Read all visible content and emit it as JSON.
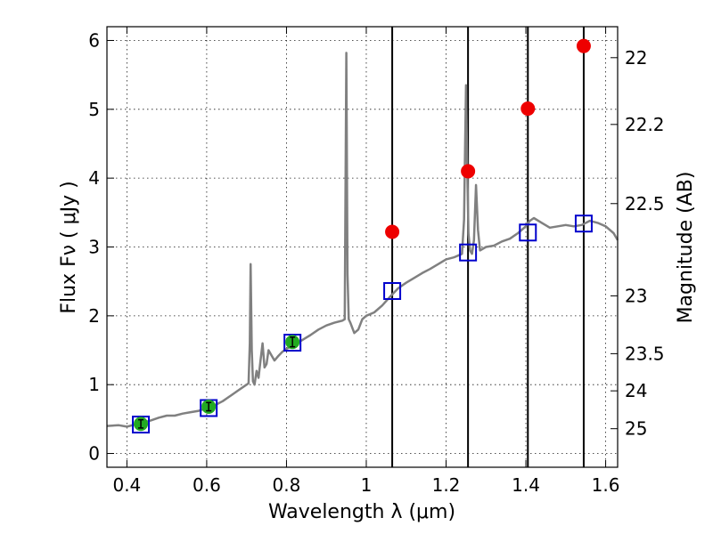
{
  "chart_data": {
    "type": "scatter",
    "title": "",
    "xlabel": "Wavelength  λ (μm)",
    "ylabel": "Flux  Fν  ( μJy )",
    "y2label": "Magnitude (AB)",
    "xlim": [
      0.35,
      1.63
    ],
    "ylim": [
      -0.2,
      6.2
    ],
    "xticks": [
      0.4,
      0.6,
      0.8,
      1.0,
      1.2,
      1.4,
      1.6
    ],
    "xtick_labels": [
      "0.4",
      "0.6",
      "0.8",
      "1",
      "1.2",
      "1.4",
      "1.6"
    ],
    "yticks": [
      0,
      1,
      2,
      3,
      4,
      5,
      6
    ],
    "ytick_labels": [
      "0",
      "1",
      "2",
      "3",
      "4",
      "5",
      "6"
    ],
    "grid": true,
    "y2ticks": [
      {
        "label": "22",
        "flux": 5.75
      },
      {
        "label": "22.2",
        "flux": 4.78
      },
      {
        "label": "22.5",
        "flux": 3.63
      },
      {
        "label": "23",
        "flux": 2.29
      },
      {
        "label": "23.5",
        "flux": 1.45
      },
      {
        "label": "24",
        "flux": 0.91
      },
      {
        "label": "25",
        "flux": 0.36
      }
    ],
    "vertical_lines": [
      1.065,
      1.255,
      1.405,
      1.545
    ],
    "series": [
      {
        "kind": "spectrum",
        "color": "#808080",
        "points": [
          [
            0.35,
            0.4
          ],
          [
            0.38,
            0.41
          ],
          [
            0.4,
            0.39
          ],
          [
            0.42,
            0.42
          ],
          [
            0.44,
            0.45
          ],
          [
            0.46,
            0.48
          ],
          [
            0.48,
            0.52
          ],
          [
            0.5,
            0.55
          ],
          [
            0.52,
            0.55
          ],
          [
            0.54,
            0.58
          ],
          [
            0.56,
            0.6
          ],
          [
            0.58,
            0.62
          ],
          [
            0.6,
            0.66
          ],
          [
            0.62,
            0.7
          ],
          [
            0.64,
            0.76
          ],
          [
            0.66,
            0.84
          ],
          [
            0.68,
            0.92
          ],
          [
            0.7,
            1.0
          ],
          [
            0.705,
            1.02
          ],
          [
            0.708,
            1.6
          ],
          [
            0.71,
            2.75
          ],
          [
            0.713,
            1.5
          ],
          [
            0.716,
            1.05
          ],
          [
            0.72,
            1.0
          ],
          [
            0.725,
            1.2
          ],
          [
            0.73,
            1.1
          ],
          [
            0.735,
            1.35
          ],
          [
            0.74,
            1.6
          ],
          [
            0.745,
            1.25
          ],
          [
            0.75,
            1.3
          ],
          [
            0.755,
            1.5
          ],
          [
            0.76,
            1.45
          ],
          [
            0.77,
            1.35
          ],
          [
            0.78,
            1.42
          ],
          [
            0.79,
            1.48
          ],
          [
            0.8,
            1.52
          ],
          [
            0.82,
            1.58
          ],
          [
            0.84,
            1.65
          ],
          [
            0.86,
            1.72
          ],
          [
            0.88,
            1.8
          ],
          [
            0.9,
            1.86
          ],
          [
            0.92,
            1.9
          ],
          [
            0.94,
            1.93
          ],
          [
            0.946,
            1.95
          ],
          [
            0.95,
            5.82
          ],
          [
            0.953,
            2.6
          ],
          [
            0.956,
            1.95
          ],
          [
            0.96,
            1.9
          ],
          [
            0.97,
            1.75
          ],
          [
            0.98,
            1.8
          ],
          [
            0.99,
            1.95
          ],
          [
            1.0,
            2.0
          ],
          [
            1.02,
            2.05
          ],
          [
            1.04,
            2.15
          ],
          [
            1.06,
            2.28
          ],
          [
            1.08,
            2.4
          ],
          [
            1.1,
            2.48
          ],
          [
            1.12,
            2.55
          ],
          [
            1.14,
            2.62
          ],
          [
            1.16,
            2.68
          ],
          [
            1.18,
            2.75
          ],
          [
            1.2,
            2.82
          ],
          [
            1.22,
            2.85
          ],
          [
            1.24,
            2.9
          ],
          [
            1.245,
            3.4
          ],
          [
            1.248,
            4.6
          ],
          [
            1.25,
            5.35
          ],
          [
            1.253,
            4.2
          ],
          [
            1.256,
            3.2
          ],
          [
            1.26,
            2.95
          ],
          [
            1.265,
            2.9
          ],
          [
            1.27,
            3.1
          ],
          [
            1.275,
            3.9
          ],
          [
            1.28,
            3.25
          ],
          [
            1.285,
            2.95
          ],
          [
            1.3,
            3.0
          ],
          [
            1.32,
            3.02
          ],
          [
            1.34,
            3.08
          ],
          [
            1.36,
            3.12
          ],
          [
            1.38,
            3.2
          ],
          [
            1.4,
            3.3
          ],
          [
            1.41,
            3.38
          ],
          [
            1.42,
            3.42
          ],
          [
            1.44,
            3.35
          ],
          [
            1.46,
            3.28
          ],
          [
            1.48,
            3.3
          ],
          [
            1.5,
            3.32
          ],
          [
            1.52,
            3.3
          ],
          [
            1.54,
            3.32
          ],
          [
            1.56,
            3.38
          ],
          [
            1.58,
            3.35
          ],
          [
            1.6,
            3.3
          ],
          [
            1.62,
            3.2
          ],
          [
            1.63,
            3.1
          ]
        ]
      },
      {
        "kind": "model_boxes",
        "color": "#0000cc",
        "points": [
          [
            0.435,
            0.42
          ],
          [
            0.605,
            0.66
          ],
          [
            0.815,
            1.61
          ],
          [
            1.065,
            2.36
          ],
          [
            1.255,
            2.92
          ],
          [
            1.405,
            3.21
          ],
          [
            1.545,
            3.34
          ]
        ]
      },
      {
        "kind": "observed",
        "color": "#22aa22",
        "points": [
          [
            0.435,
            0.43
          ],
          [
            0.605,
            0.68
          ],
          [
            0.815,
            1.62
          ]
        ],
        "errors": [
          0.06,
          0.06,
          0.07
        ]
      },
      {
        "kind": "predicted",
        "color": "#ee0000",
        "points": [
          [
            1.065,
            3.22
          ],
          [
            1.255,
            4.1
          ],
          [
            1.405,
            5.01
          ],
          [
            1.545,
            5.92
          ]
        ]
      }
    ]
  }
}
